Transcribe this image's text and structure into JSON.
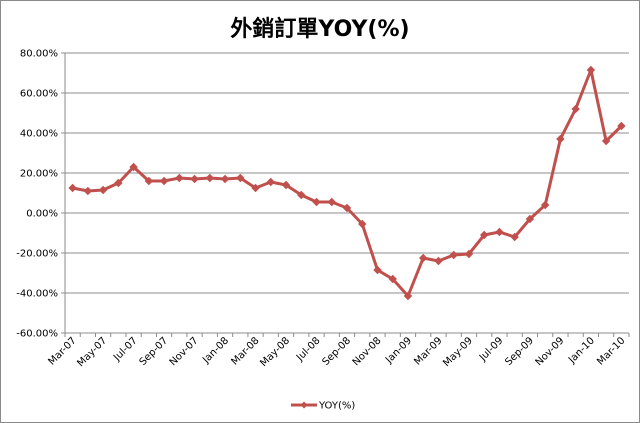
{
  "chart_data": {
    "type": "line",
    "title": "外銷訂單YOY(%)",
    "xlabel": "",
    "ylabel": "",
    "ylim": [
      -60,
      80
    ],
    "grid": true,
    "legend_placement": "bottom",
    "y_ticks": [
      "80.00%",
      "60.00%",
      "40.00%",
      "20.00%",
      "0.00%",
      "-20.00%",
      "-40.00%",
      "-60.00%"
    ],
    "x_tick_labels": [
      "Mar-07",
      "May-07",
      "Jul-07",
      "Sep-07",
      "Nov-07",
      "Jan-08",
      "Mar-08",
      "May-08",
      "Jul-08",
      "Sep-08",
      "Nov-08",
      "Jan-09",
      "Mar-09",
      "May-09",
      "Jul-09",
      "Sep-09",
      "Nov-09",
      "Jan-10",
      "Mar-10"
    ],
    "x": [
      "Mar-07",
      "Apr-07",
      "May-07",
      "Jun-07",
      "Jul-07",
      "Aug-07",
      "Sep-07",
      "Oct-07",
      "Nov-07",
      "Dec-07",
      "Jan-08",
      "Feb-08",
      "Mar-08",
      "Apr-08",
      "May-08",
      "Jun-08",
      "Jul-08",
      "Aug-08",
      "Sep-08",
      "Oct-08",
      "Nov-08",
      "Dec-08",
      "Jan-09",
      "Feb-09",
      "Mar-09",
      "Apr-09",
      "May-09",
      "Jun-09",
      "Jul-09",
      "Aug-09",
      "Sep-09",
      "Oct-09",
      "Nov-09",
      "Dec-09",
      "Jan-10",
      "Feb-10",
      "Mar-10"
    ],
    "series": [
      {
        "name": "YOY(%)",
        "color": "#c0504d",
        "values": [
          12.5,
          11,
          11.5,
          15,
          23,
          16,
          16,
          17.5,
          17,
          17.5,
          17,
          17.5,
          12.5,
          15.5,
          14,
          9,
          5.5,
          5.5,
          2.5,
          -5.5,
          -28.5,
          -33,
          -41.5,
          -22.5,
          -24,
          -21,
          -20.5,
          -11,
          -9.5,
          -12,
          -3,
          4,
          37,
          52,
          71.5,
          36,
          43.5
        ]
      }
    ]
  }
}
